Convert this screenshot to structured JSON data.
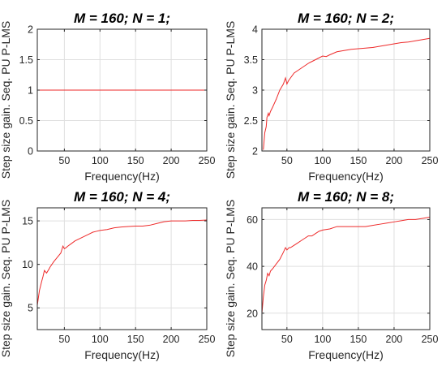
{
  "chart_data": [
    {
      "type": "line",
      "title": "M = 160; N = 1;",
      "xlabel": "Frequency(Hz)",
      "ylabel": "Step size gain. Seq. PU P-LMS",
      "xlim": [
        12,
        250
      ],
      "ylim": [
        0,
        2
      ],
      "xticks": [
        50,
        100,
        150,
        200,
        250
      ],
      "yticks": [
        0,
        0.5,
        1,
        1.5,
        2
      ],
      "grid": true,
      "series": [
        {
          "x": [
            12,
            250
          ],
          "values": [
            1,
            1
          ],
          "color": "#ee2a2a"
        }
      ]
    },
    {
      "type": "line",
      "title": "M = 160; N = 2;",
      "xlabel": "Frequency(Hz)",
      "ylabel": "Step size gain. Seq. PU P-LMS",
      "xlim": [
        15,
        250
      ],
      "ylim": [
        2,
        4
      ],
      "xticks": [
        50,
        100,
        150,
        200,
        250
      ],
      "yticks": [
        2,
        2.5,
        3,
        3.5,
        4
      ],
      "grid": true,
      "series": [
        {
          "x": [
            17,
            19,
            21,
            22,
            24,
            25,
            27,
            30,
            35,
            40,
            45,
            48,
            50,
            52,
            55,
            60,
            65,
            70,
            75,
            80,
            85,
            90,
            95,
            100,
            105,
            110,
            120,
            130,
            140,
            150,
            160,
            170,
            180,
            190,
            200,
            210,
            220,
            230,
            240,
            250
          ],
          "values": [
            2.02,
            2.3,
            2.4,
            2.55,
            2.62,
            2.58,
            2.65,
            2.72,
            2.85,
            3.0,
            3.1,
            3.2,
            3.1,
            3.15,
            3.2,
            3.28,
            3.32,
            3.36,
            3.4,
            3.44,
            3.47,
            3.5,
            3.53,
            3.56,
            3.55,
            3.58,
            3.63,
            3.65,
            3.67,
            3.68,
            3.69,
            3.7,
            3.72,
            3.74,
            3.76,
            3.78,
            3.79,
            3.81,
            3.83,
            3.85
          ],
          "color": "#ee2a2a"
        }
      ]
    },
    {
      "type": "line",
      "title": "M = 160; N = 4;",
      "xlabel": "Frequency(Hz)",
      "ylabel": "Step size gain. Seq. PU P-LMS",
      "xlim": [
        12,
        250
      ],
      "ylim": [
        2.5,
        16.5
      ],
      "xticks": [
        50,
        100,
        150,
        200,
        250
      ],
      "yticks": [
        5,
        10,
        15
      ],
      "grid": true,
      "series": [
        {
          "x": [
            12,
            15,
            18,
            20,
            22,
            25,
            28,
            30,
            35,
            40,
            45,
            48,
            50,
            52,
            55,
            60,
            65,
            70,
            75,
            80,
            85,
            90,
            95,
            100,
            110,
            120,
            130,
            140,
            150,
            160,
            170,
            180,
            190,
            200,
            210,
            220,
            230,
            240,
            250
          ],
          "values": [
            5.3,
            7.0,
            8.0,
            8.6,
            9.3,
            9.0,
            9.4,
            9.7,
            10.3,
            10.8,
            11.3,
            12.1,
            11.8,
            11.9,
            12.1,
            12.4,
            12.7,
            12.9,
            13.1,
            13.3,
            13.5,
            13.7,
            13.8,
            13.9,
            14.0,
            14.2,
            14.3,
            14.35,
            14.4,
            14.4,
            14.5,
            14.7,
            14.9,
            15.0,
            15.0,
            15.0,
            15.05,
            15.05,
            15.1
          ],
          "color": "#ee2a2a"
        }
      ]
    },
    {
      "type": "line",
      "title": "M = 160; N = 8;",
      "xlabel": "Frequency(Hz)",
      "ylabel": "Step size gain. Seq. PU P-LMS",
      "xlim": [
        15,
        250
      ],
      "ylim": [
        13,
        65
      ],
      "xticks": [
        50,
        100,
        150,
        200,
        250
      ],
      "yticks": [
        20,
        40,
        60
      ],
      "grid": true,
      "series": [
        {
          "x": [
            15,
            17,
            19,
            21,
            23,
            25,
            27,
            30,
            35,
            40,
            45,
            48,
            50,
            53,
            55,
            60,
            65,
            70,
            75,
            80,
            85,
            90,
            95,
            100,
            110,
            120,
            130,
            140,
            150,
            160,
            170,
            180,
            190,
            200,
            210,
            220,
            230,
            240,
            250
          ],
          "values": [
            20,
            27,
            32,
            34,
            37,
            36,
            38,
            39,
            41,
            43,
            46,
            48,
            47,
            48,
            48,
            49,
            50,
            51,
            52,
            53,
            53,
            54,
            55,
            55.5,
            56,
            57,
            57,
            57,
            57,
            57,
            57.5,
            58,
            58.5,
            59,
            59.5,
            60,
            60,
            60.5,
            61
          ],
          "color": "#ee2a2a"
        }
      ]
    }
  ]
}
